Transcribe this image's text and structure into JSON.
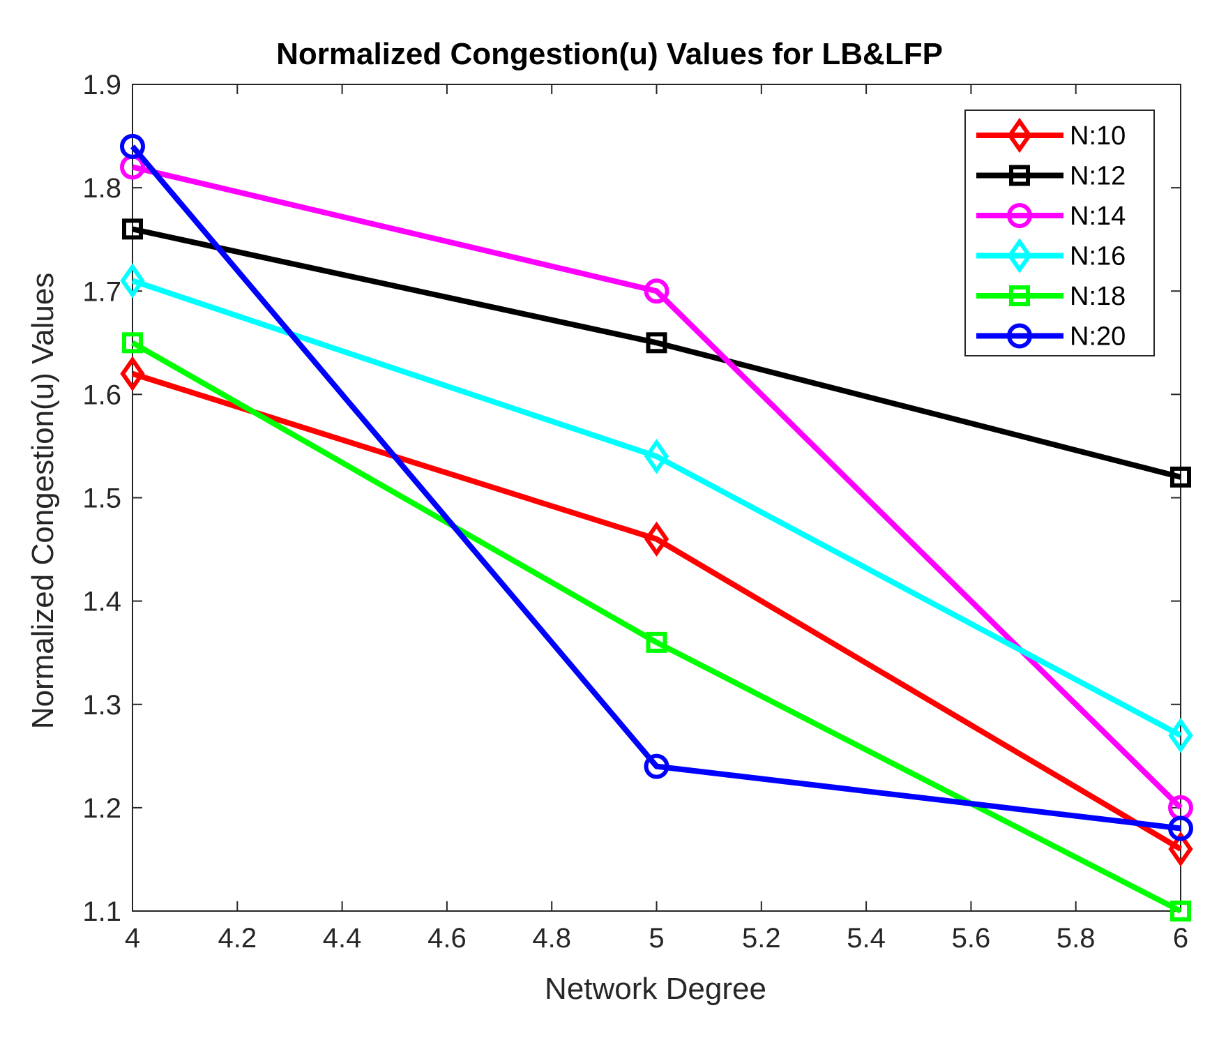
{
  "chart_data": {
    "type": "line",
    "title": "Normalized Congestion(u) Values for LB&LFP",
    "xlabel": "Network Degree",
    "ylabel": "Normalized Congestion(u) Values",
    "x": [
      4,
      5,
      6
    ],
    "xlim": [
      4,
      6
    ],
    "ylim": [
      1.1,
      1.9
    ],
    "xticks": [
      "4",
      "4.2",
      "4.4",
      "4.6",
      "4.8",
      "5",
      "5.2",
      "5.4",
      "5.6",
      "5.8",
      "6"
    ],
    "yticks": [
      "1.1",
      "1.2",
      "1.3",
      "1.4",
      "1.5",
      "1.6",
      "1.7",
      "1.8",
      "1.9"
    ],
    "grid": false,
    "legend_position": "top-right",
    "series": [
      {
        "name": "N:10",
        "color": "#ff0000",
        "marker": "diamond",
        "values": [
          1.62,
          1.46,
          1.16
        ]
      },
      {
        "name": "N:12",
        "color": "#000000",
        "marker": "square",
        "values": [
          1.76,
          1.65,
          1.52
        ]
      },
      {
        "name": "N:14",
        "color": "#ff00ff",
        "marker": "circle",
        "values": [
          1.82,
          1.7,
          1.2
        ]
      },
      {
        "name": "N:16",
        "color": "#00ffff",
        "marker": "diamond",
        "values": [
          1.71,
          1.54,
          1.27
        ]
      },
      {
        "name": "N:18",
        "color": "#00ff00",
        "marker": "square",
        "values": [
          1.65,
          1.36,
          1.1
        ]
      },
      {
        "name": "N:20",
        "color": "#0000ff",
        "marker": "circle",
        "values": [
          1.84,
          1.24,
          1.18
        ]
      }
    ]
  }
}
